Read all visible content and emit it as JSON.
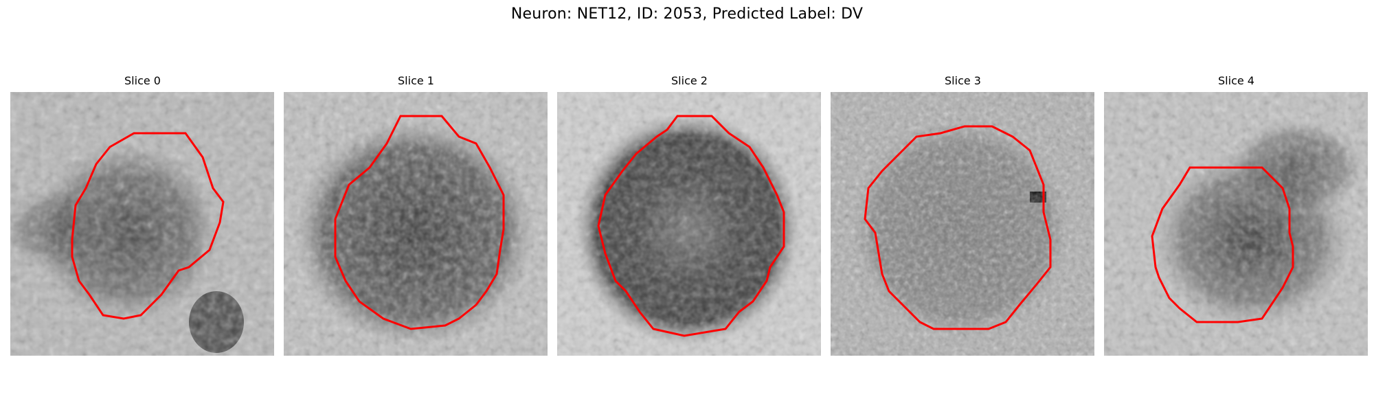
{
  "figure": {
    "title": "Neuron: NET12, ID: 2053, Predicted Label: DV"
  },
  "contour_color": "#ff0000",
  "panels": [
    {
      "title": "Slice 0"
    },
    {
      "title": "Slice 1"
    },
    {
      "title": "Slice 2"
    },
    {
      "title": "Slice 3"
    },
    {
      "title": "Slice 4"
    }
  ]
}
